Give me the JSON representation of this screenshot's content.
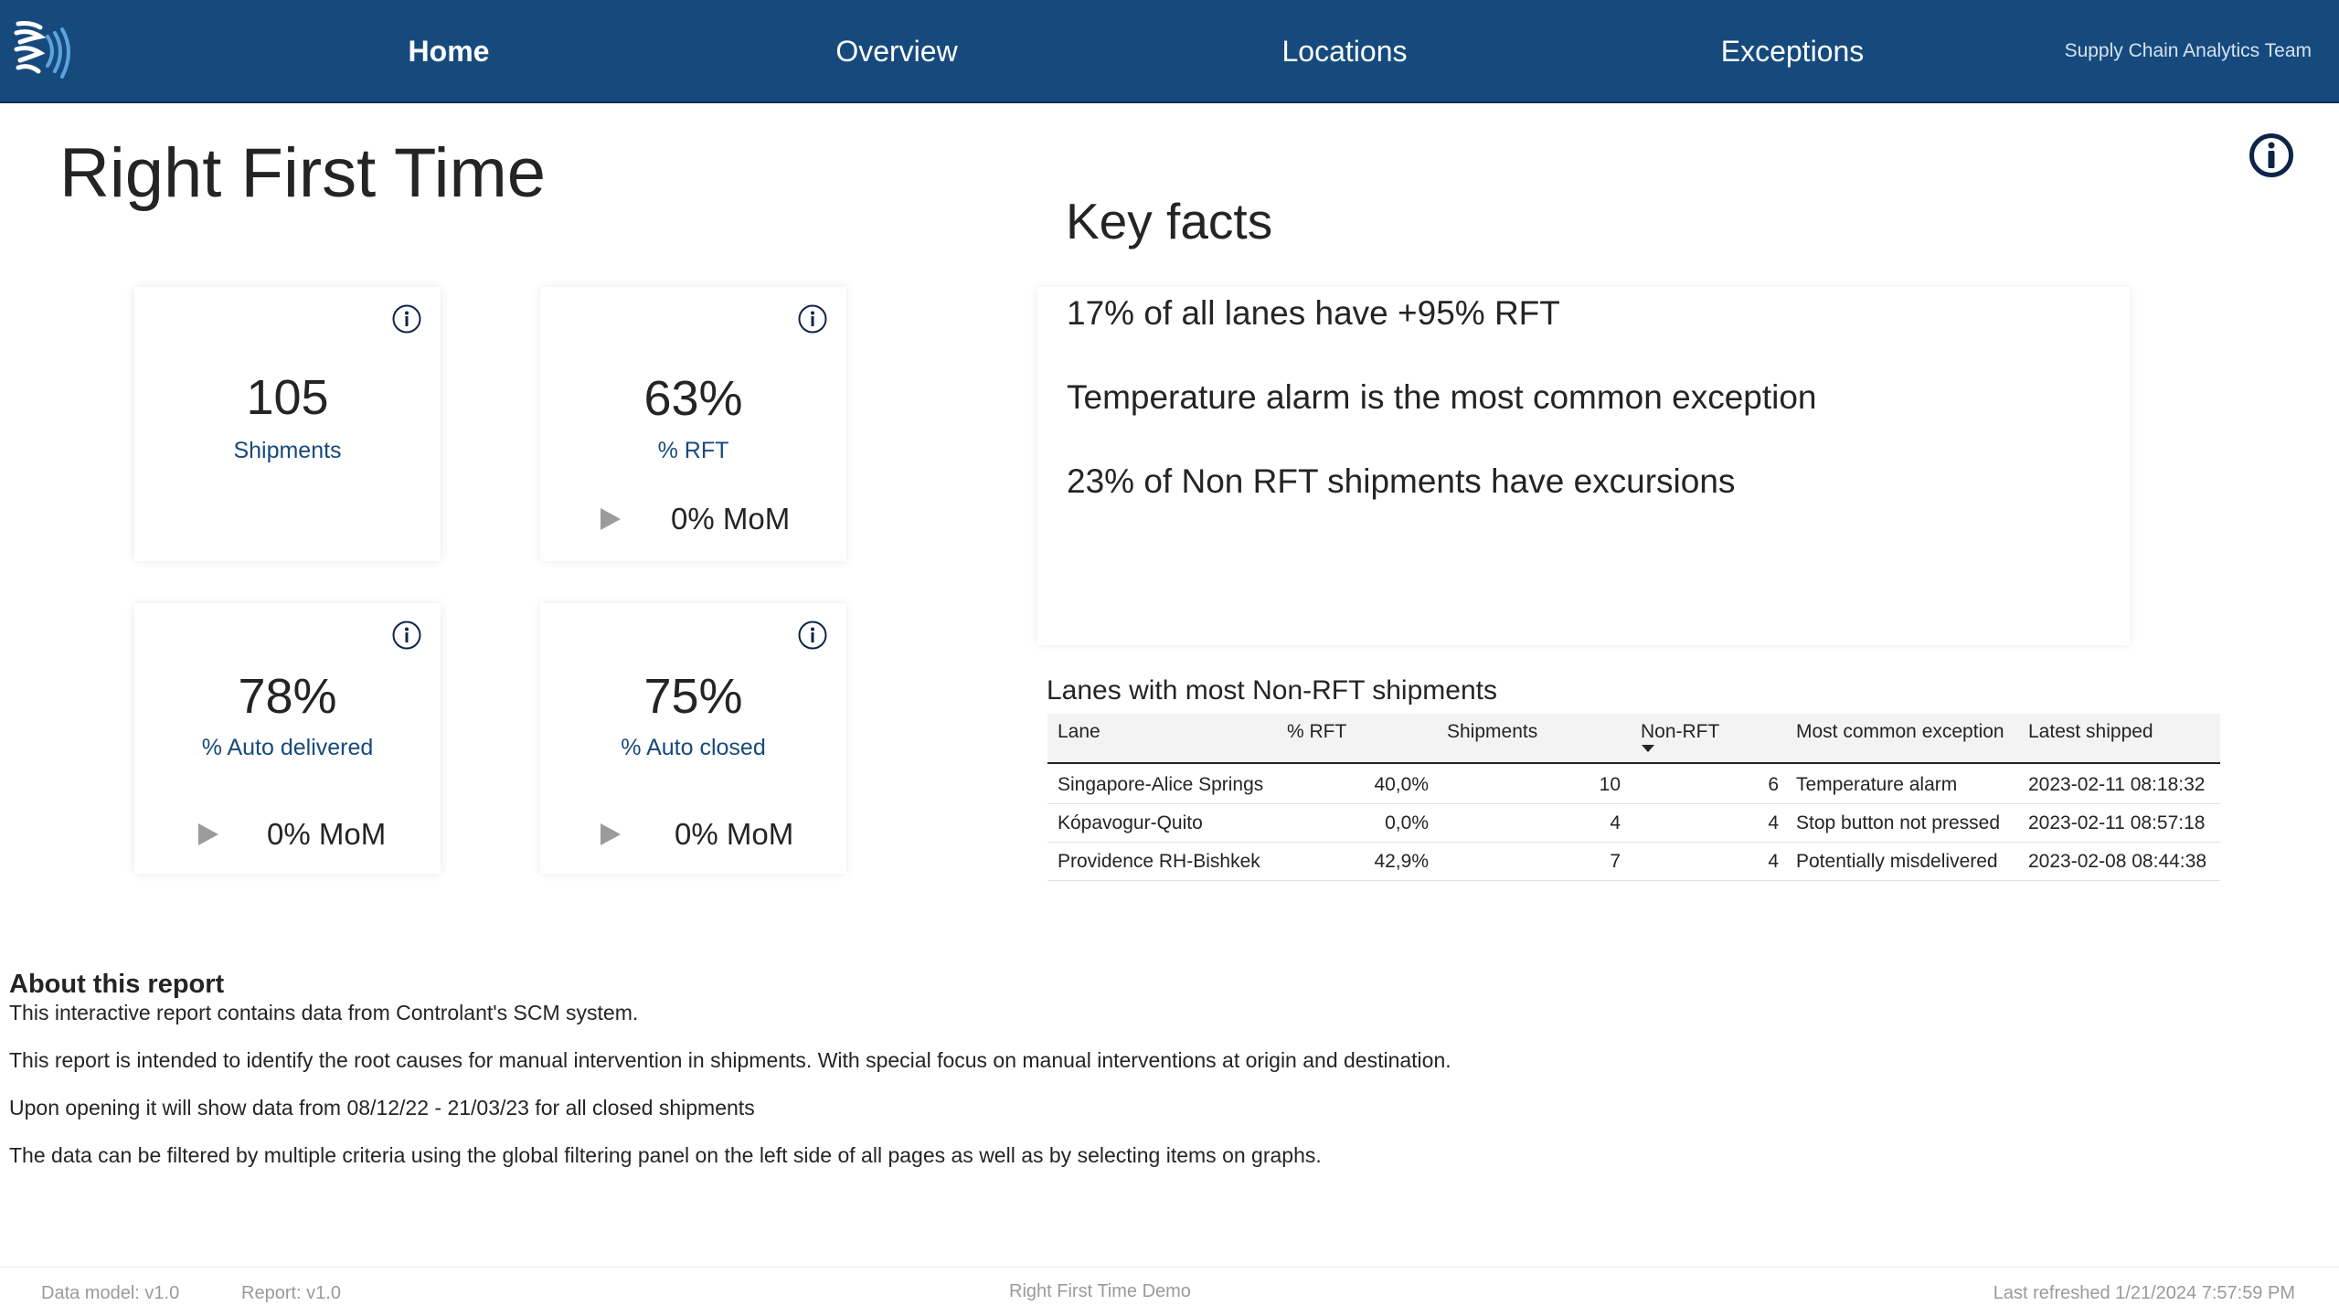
{
  "nav": {
    "items": [
      {
        "label": "Home",
        "active": true
      },
      {
        "label": "Overview",
        "active": false
      },
      {
        "label": "Locations",
        "active": false
      },
      {
        "label": "Exceptions",
        "active": false
      }
    ],
    "team": "Supply Chain Analytics Team",
    "logo_icon": "wave-logo-icon"
  },
  "page": {
    "title": "Right First Time",
    "info_icon": "info-icon"
  },
  "kpis": [
    {
      "value": "105",
      "label": "Shipments",
      "mom": null
    },
    {
      "value": "63%",
      "label": "% RFT",
      "mom": "0% MoM"
    },
    {
      "value": "78%",
      "label": "% Auto delivered",
      "mom": "0% MoM"
    },
    {
      "value": "75%",
      "label": "% Auto closed",
      "mom": "0% MoM"
    }
  ],
  "key_facts": {
    "title": "Key facts",
    "items": [
      "17% of all lanes have +95% RFT",
      "Temperature alarm is the most common exception",
      "23% of Non RFT shipments have excursions"
    ]
  },
  "lanes_table": {
    "title": "Lanes with most Non-RFT shipments",
    "columns": [
      "Lane",
      "% RFT",
      "Shipments",
      "Non-RFT",
      "Most common exception",
      "Latest shipped"
    ],
    "sorted_column": "Non-RFT",
    "rows": [
      [
        "Singapore-Alice Springs",
        "40,0%",
        "10",
        "6",
        "Temperature alarm",
        "2023-02-11 08:18:32"
      ],
      [
        "Kópavogur-Quito",
        "0,0%",
        "4",
        "4",
        "Stop button not pressed",
        "2023-02-11 08:57:18"
      ],
      [
        "Providence RH-Bishkek",
        "42,9%",
        "7",
        "4",
        "Potentially misdelivered",
        "2023-02-08 08:44:38"
      ]
    ]
  },
  "about": {
    "title": "About this report",
    "lines": [
      "This interactive report contains data from Controlant's SCM system.",
      "This report is intended to identify the root causes for manual intervention in shipments. With special focus on manual interventions at origin and destination.",
      "Upon opening it will show data from 08/12/22 - 21/03/23 for all closed shipments",
      "The data can be filtered by multiple criteria using the global filtering panel on the left side of all pages as well as by selecting items on graphs."
    ]
  },
  "footer": {
    "data_model": "Data model: v1.0",
    "report": "Report: v1.0",
    "center": "Right First Time Demo",
    "refreshed": "Last refreshed 1/21/2024 7:57:59 PM"
  },
  "colors": {
    "nav_bg": "#164a7d",
    "kpi_label": "#164a7d",
    "trend_neutral": "#9b9b9b",
    "text": "#252423"
  }
}
